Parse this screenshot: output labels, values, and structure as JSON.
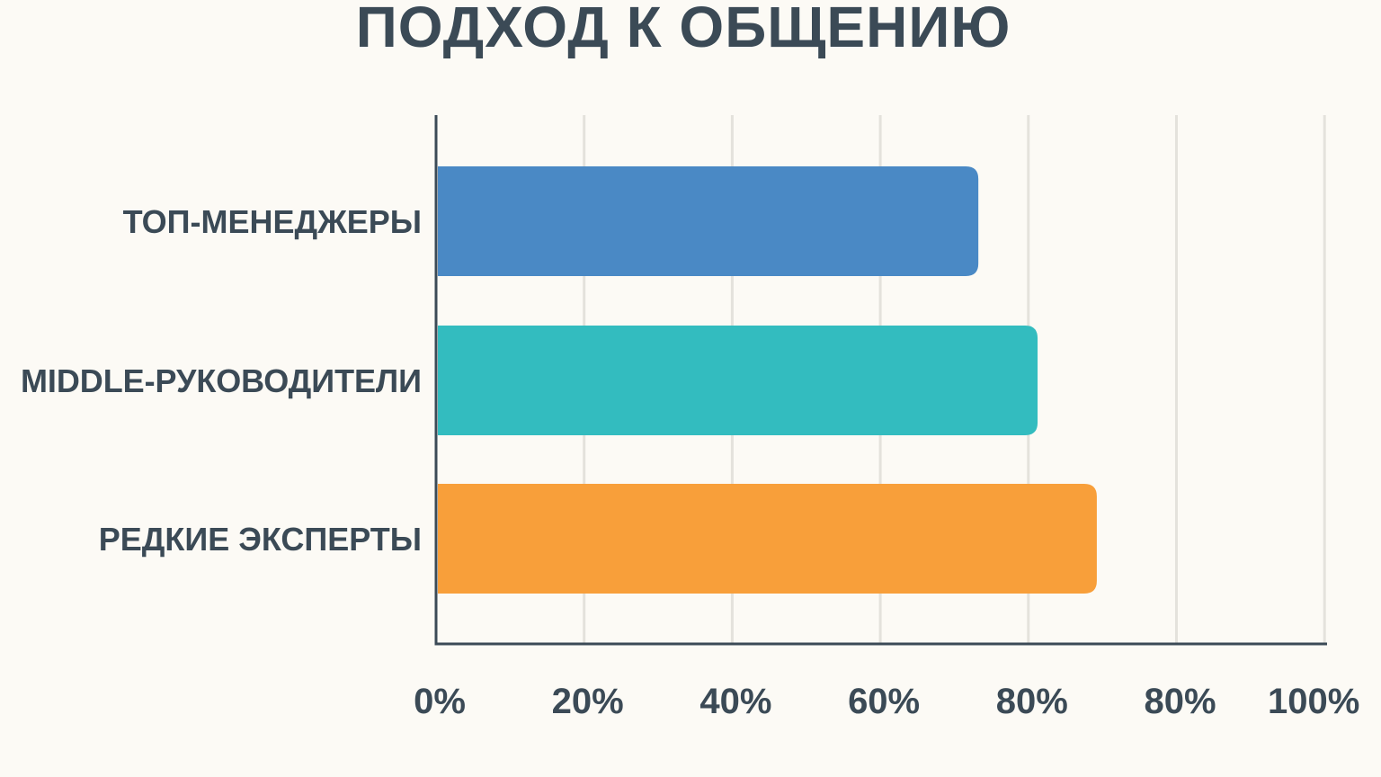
{
  "chart_data": {
    "type": "bar",
    "orientation": "horizontal",
    "title": "ПОДХОД К ОБЩЕНИЮ",
    "categories": [
      "ТОП-МЕНЕДЖЕРЫ",
      "MIDDLE-РУКОВОДИТЕЛИ",
      "РЕДКИЕ ЭКСПЕРТЫ"
    ],
    "values": [
      73,
      81,
      89
    ],
    "colors": [
      "#4a89c5",
      "#33bcbf",
      "#f89f3a"
    ],
    "x_ticks": [
      "0%",
      "20%",
      "40%",
      "60%",
      "80%",
      "80%",
      "100%"
    ],
    "xlim": [
      0,
      120
    ],
    "grid": true,
    "xlabel": "",
    "ylabel": ""
  }
}
